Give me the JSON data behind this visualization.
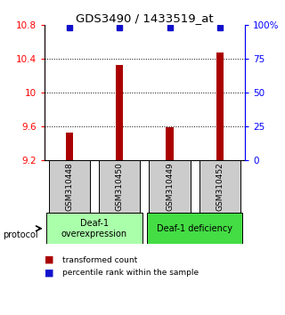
{
  "title": "GDS3490 / 1433519_at",
  "samples": [
    "GSM310448",
    "GSM310450",
    "GSM310449",
    "GSM310452"
  ],
  "bar_values": [
    9.52,
    10.33,
    9.585,
    10.475
  ],
  "percentile_values": [
    98,
    98,
    98,
    98
  ],
  "ylim_left": [
    9.2,
    10.8
  ],
  "ylim_right": [
    0,
    100
  ],
  "yticks_left": [
    9.2,
    9.6,
    10.0,
    10.4,
    10.8
  ],
  "ytick_labels_left": [
    "9.2",
    "9.6",
    "10",
    "10.4",
    "10.8"
  ],
  "yticks_right": [
    0,
    25,
    50,
    75,
    100
  ],
  "ytick_labels_right": [
    "0",
    "25",
    "50",
    "75",
    "100%"
  ],
  "bar_color": "#aa0000",
  "dot_color": "#1111cc",
  "groups": [
    {
      "label": "Deaf-1\noverexpression",
      "color": "#aaffaa"
    },
    {
      "label": "Deaf-1 deficiency",
      "color": "#44dd44"
    }
  ],
  "protocol_label": "protocol",
  "legend_bar_label": "transformed count",
  "legend_dot_label": "percentile rank within the sample",
  "x_positions": [
    0,
    1,
    2,
    3
  ],
  "bar_bottom": 9.2,
  "bar_width": 0.15,
  "dot_size": 4
}
